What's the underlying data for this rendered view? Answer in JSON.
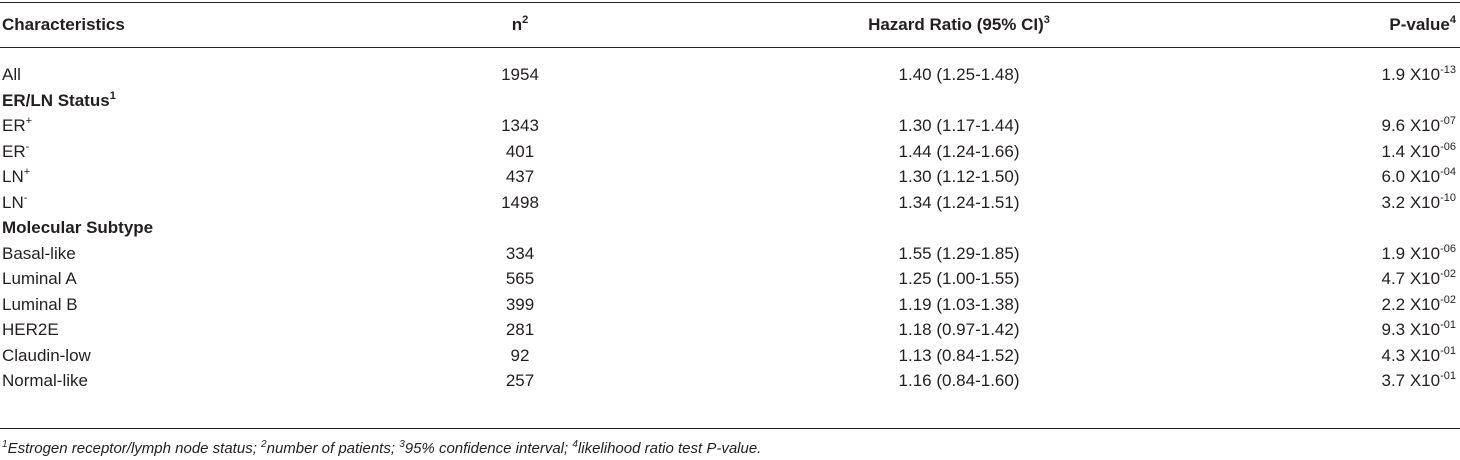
{
  "table": {
    "headers": {
      "characteristics": "Characteristics",
      "n": "n",
      "n_sup": "2",
      "hazard_ratio": "Hazard Ratio (95% CI)",
      "hazard_ratio_sup": "3",
      "p_value": "P-value",
      "p_value_sup": "4"
    },
    "rows": [
      {
        "label": "All",
        "label_sup": "",
        "n": "1954",
        "hr": "1.40 (1.25-1.48)",
        "p": "1.9 X10",
        "p_exp": "-13"
      },
      {
        "section": "ER/LN Status",
        "section_sup": "1"
      },
      {
        "label": "ER",
        "label_sup": "+",
        "n": "1343",
        "hr": "1.30 (1.17-1.44)",
        "p": "9.6 X10",
        "p_exp": "-07"
      },
      {
        "label": "ER",
        "label_sup": "-",
        "n": "401",
        "hr": "1.44 (1.24-1.66)",
        "p": "1.4 X10",
        "p_exp": "-06"
      },
      {
        "label": "LN",
        "label_sup": "+",
        "n": "437",
        "hr": "1.30 (1.12-1.50)",
        "p": "6.0 X10",
        "p_exp": "-04"
      },
      {
        "label": "LN",
        "label_sup": "-",
        "n": "1498",
        "hr": "1.34 (1.24-1.51)",
        "p": "3.2 X10",
        "p_exp": "-10"
      },
      {
        "section": "Molecular Subtype",
        "section_sup": ""
      },
      {
        "label": "Basal-like",
        "label_sup": "",
        "n": "334",
        "hr": "1.55 (1.29-1.85)",
        "p": "1.9 X10",
        "p_exp": "-06"
      },
      {
        "label": "Luminal A",
        "label_sup": "",
        "n": "565",
        "hr": "1.25 (1.00-1.55)",
        "p": "4.7 X10",
        "p_exp": "-02"
      },
      {
        "label": "Luminal B",
        "label_sup": "",
        "n": "399",
        "hr": "1.19 (1.03-1.38)",
        "p": "2.2 X10",
        "p_exp": "-02"
      },
      {
        "label": "HER2E",
        "label_sup": "",
        "n": "281",
        "hr": "1.18 (0.97-1.42)",
        "p": "9.3 X10",
        "p_exp": "-01"
      },
      {
        "label": "Claudin-low",
        "label_sup": "",
        "n": "92",
        "hr": "1.13 (0.84-1.52)",
        "p": "4.3 X10",
        "p_exp": "-01"
      },
      {
        "label": "Normal-like",
        "label_sup": "",
        "n": "257",
        "hr": "1.16 (0.84-1.60)",
        "p": "3.7 X10",
        "p_exp": "-01"
      }
    ]
  },
  "footnote": [
    {
      "sup": "1",
      "text": "Estrogen receptor/lymph node status; "
    },
    {
      "sup": "2",
      "text": "number of patients; "
    },
    {
      "sup": "3",
      "text": "95% confidence interval; "
    },
    {
      "sup": "4",
      "text": "likelihood ratio test P-value."
    }
  ]
}
